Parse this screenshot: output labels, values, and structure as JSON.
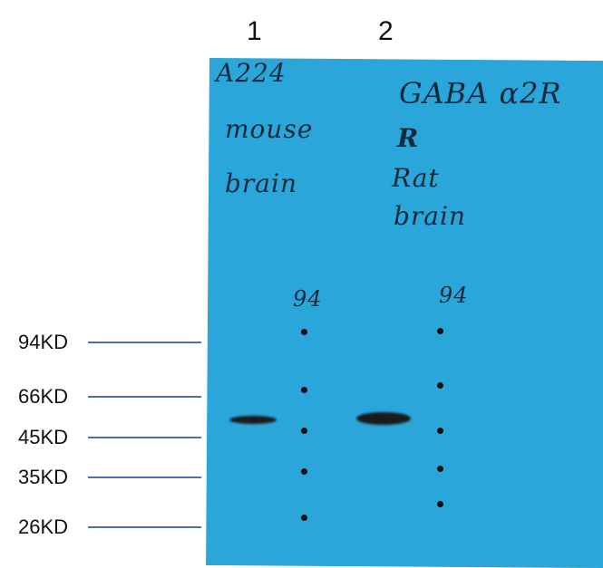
{
  "lanes": [
    {
      "label": "1"
    },
    {
      "label": "2"
    }
  ],
  "markers": [
    "94KD",
    "66KD",
    "45KD",
    "35KD",
    "26KD"
  ],
  "membrane": {
    "color": "#2aa6da",
    "handwriting": {
      "lane1": [
        "A224",
        "mouse",
        "brain"
      ],
      "lane2": [
        "GABA α2R",
        "R",
        "Rat",
        "brain"
      ],
      "ladder_note1": "94",
      "ladder_note2": "94"
    }
  }
}
